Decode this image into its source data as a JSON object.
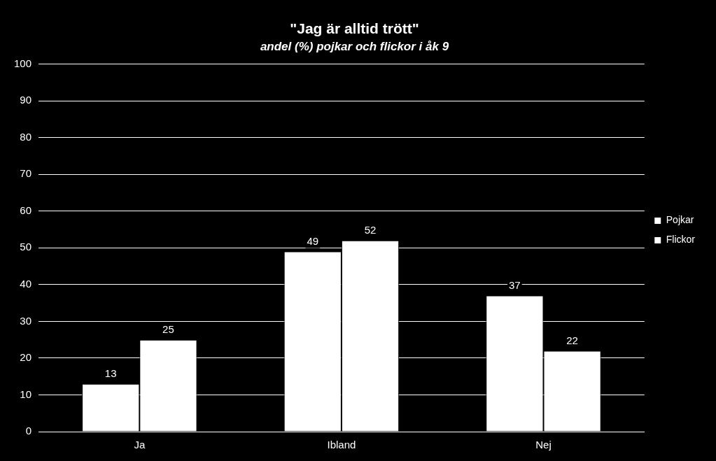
{
  "chart_data": {
    "type": "bar",
    "title": "\"Jag är alltid trött\"",
    "subtitle": "andel (%) pojkar och flickor i åk 9",
    "categories": [
      "Ja",
      "Ibland",
      "Nej"
    ],
    "series": [
      {
        "name": "Pojkar",
        "color": "#ffffff",
        "values": [
          13,
          49,
          37
        ]
      },
      {
        "name": "Flickor",
        "color": "#ffffff",
        "values": [
          25,
          52,
          22
        ]
      }
    ],
    "ylim": [
      0,
      100
    ],
    "yticks": [
      0,
      10,
      20,
      30,
      40,
      50,
      60,
      70,
      80,
      90,
      100
    ],
    "grid": "y",
    "legend": "right",
    "data_labels": true
  }
}
